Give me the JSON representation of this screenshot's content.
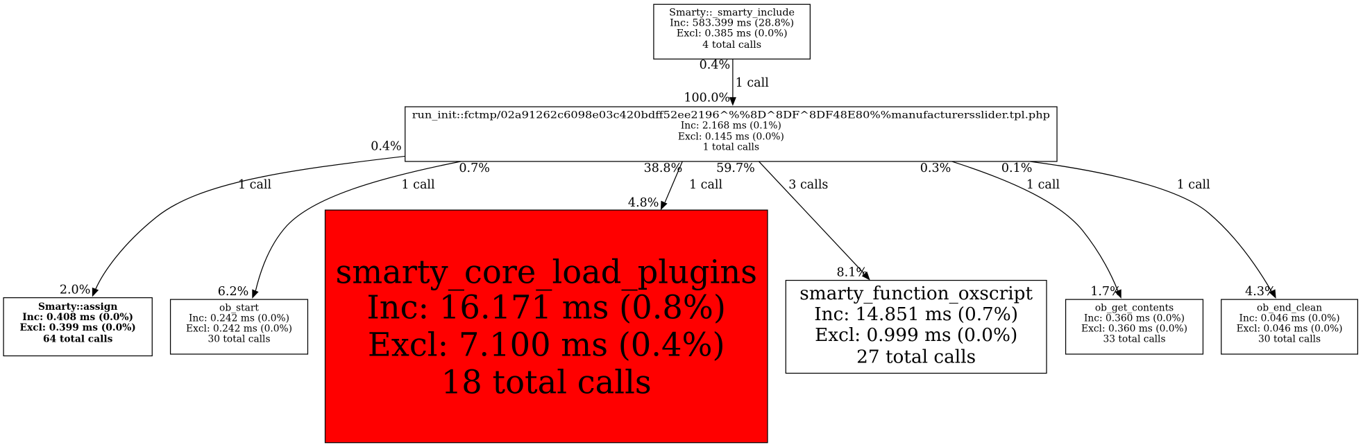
{
  "nodes": [
    {
      "id": "smarty_include",
      "lines": [
        "Smarty::_smarty_include",
        "Inc: 583.399 ms (28.8%)",
        "Excl: 0.385 ms (0.0%)",
        "4 total calls"
      ],
      "fill": "#ffffff",
      "bold": false
    },
    {
      "id": "run_init",
      "lines": [
        "run_init::fctmp/02a91262c6098e03c420bdff52ee2196^%%8D^8DF^8DF48E80%%manufacturersslider.tpl.php",
        "Inc: 2.168 ms (0.1%)",
        "Excl: 0.145 ms (0.0%)",
        "1 total calls"
      ],
      "fill": "#ffffff",
      "bold": false
    },
    {
      "id": "smarty_assign",
      "lines": [
        "Smarty::assign",
        "Inc: 0.408 ms (0.0%)",
        "Excl: 0.399 ms (0.0%)",
        "64 total calls"
      ],
      "fill": "#ffffff",
      "bold": true
    },
    {
      "id": "ob_start",
      "lines": [
        "ob_start",
        "Inc: 0.242 ms (0.0%)",
        "Excl: 0.242 ms (0.0%)",
        "30 total calls"
      ],
      "fill": "#ffffff",
      "bold": false
    },
    {
      "id": "smarty_core_load_plugins",
      "lines": [
        "smarty_core_load_plugins",
        "Inc: 16.171 ms (0.8%)",
        "Excl: 7.100 ms (0.4%)",
        "18 total calls"
      ],
      "fill": "#ff0000",
      "bold": false
    },
    {
      "id": "smarty_function_oxscript",
      "lines": [
        "smarty_function_oxscript",
        "Inc: 14.851 ms (0.7%)",
        "Excl: 0.999 ms (0.0%)",
        "27 total calls"
      ],
      "fill": "#ffffff",
      "bold": false
    },
    {
      "id": "ob_get_contents",
      "lines": [
        "ob_get_contents",
        "Inc: 0.360 ms (0.0%)",
        "Excl: 0.360 ms (0.0%)",
        "33 total calls"
      ],
      "fill": "#ffffff",
      "bold": false
    },
    {
      "id": "ob_end_clean",
      "lines": [
        "ob_end_clean",
        "Inc: 0.046 ms (0.0%)",
        "Excl: 0.046 ms (0.0%)",
        "30 total calls"
      ],
      "fill": "#ffffff",
      "bold": false
    }
  ],
  "edges": [
    {
      "from": "smarty_include",
      "to": "run_init",
      "tail": "0.4%",
      "label": "1 call",
      "head": "100.0%"
    },
    {
      "from": "run_init",
      "to": "smarty_assign",
      "tail": "0.4%",
      "label": "1 call",
      "head": "2.0%"
    },
    {
      "from": "run_init",
      "to": "ob_start",
      "tail": "0.7%",
      "label": "1 call",
      "head": "6.2%"
    },
    {
      "from": "run_init",
      "to": "smarty_core_load_plugins",
      "tail": "38.8%",
      "label": "1 call",
      "head": "4.8%"
    },
    {
      "from": "run_init",
      "to": "smarty_function_oxscript",
      "tail": "59.7%",
      "label": "3 calls",
      "head": "8.1%"
    },
    {
      "from": "run_init",
      "to": "ob_get_contents",
      "tail": "0.3%",
      "label": "1 call",
      "head": "1.7%"
    },
    {
      "from": "run_init",
      "to": "ob_end_clean",
      "tail": "0.1%",
      "label": "1 call",
      "head": "4.3%"
    }
  ]
}
